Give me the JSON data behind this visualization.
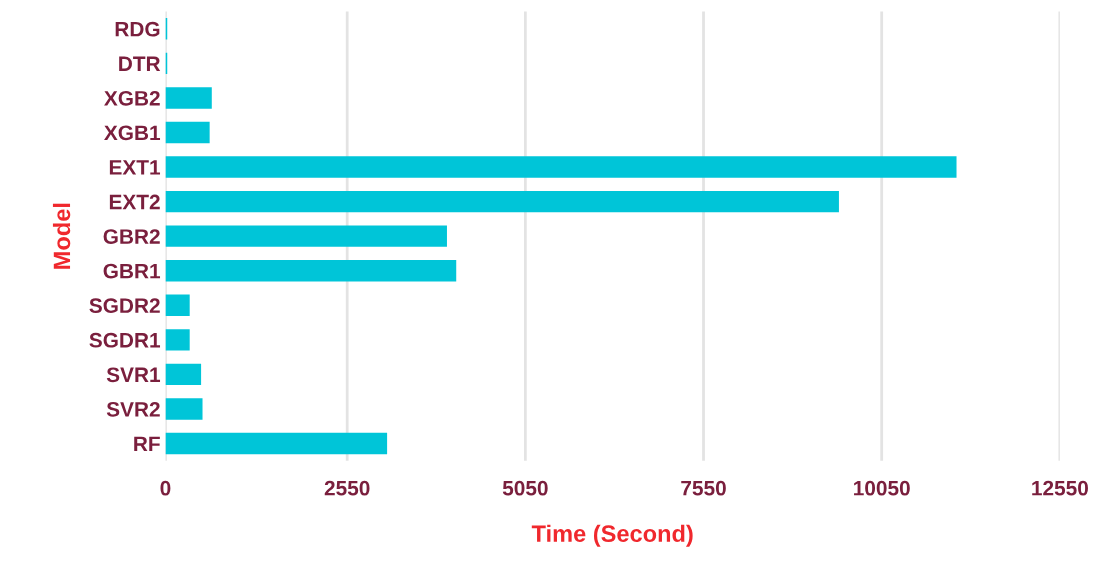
{
  "chart_data": {
    "type": "bar",
    "orientation": "horizontal",
    "xlabel": "Time (Second)",
    "ylabel": "Model",
    "categories": [
      "RDG",
      "DTR",
      "XGB2",
      "XGB1",
      "EXT1",
      "EXT2",
      "GBR2",
      "GBR1",
      "SGDR2",
      "SGDR1",
      "SVR1",
      "SVR2",
      "RF"
    ],
    "series": [
      {
        "color": "#00c5d8",
        "values": [
          25,
          25,
          650,
          620,
          11100,
          9450,
          3950,
          4080,
          340,
          340,
          500,
          520,
          3110
        ]
      }
    ],
    "xlim": [
      0,
      12550
    ],
    "xticks": [
      0,
      2550,
      5050,
      7550,
      10050,
      12550
    ],
    "grid": "x"
  }
}
